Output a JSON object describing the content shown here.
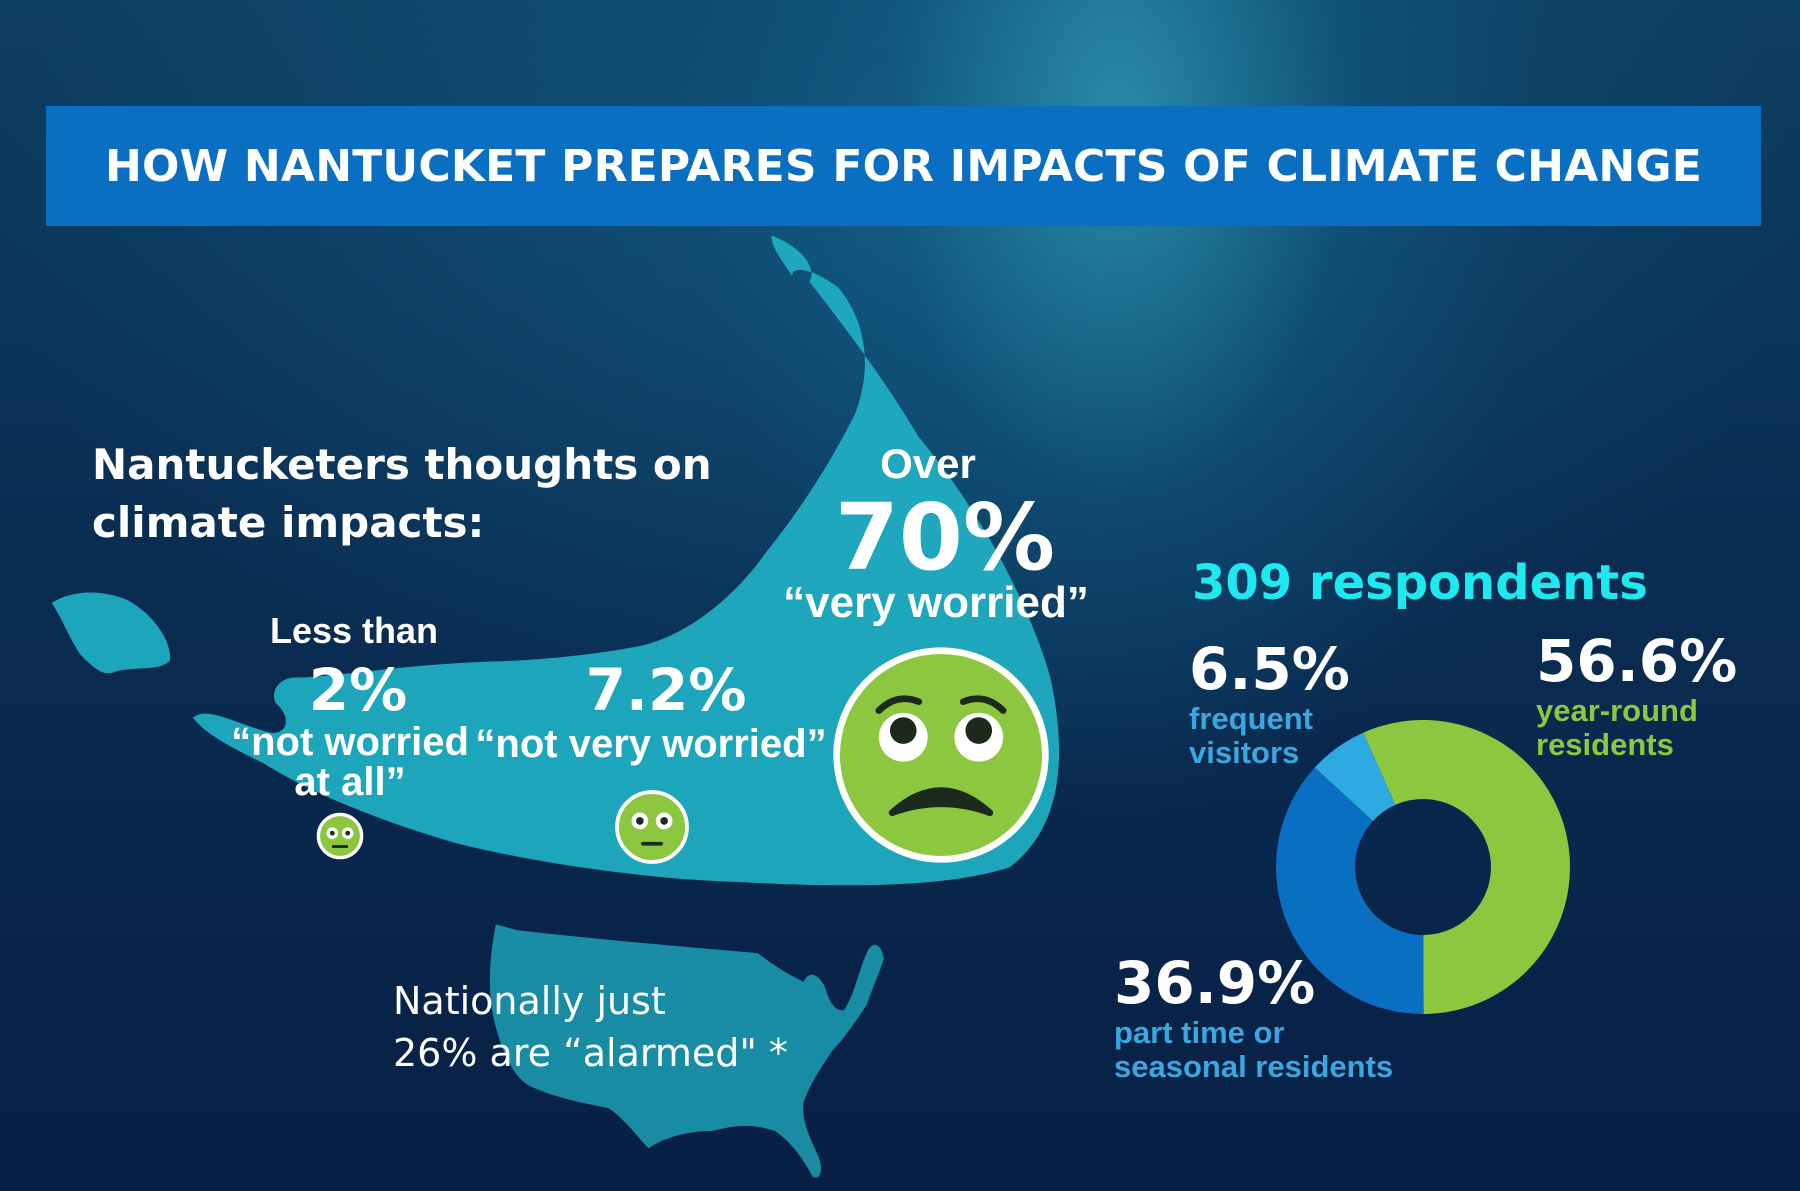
{
  "title": "HOW NANTUCKET PREPARES FOR IMPACTS OF CLIMATE CHANGE",
  "thoughts": {
    "heading_line1": "Nantucketers thoughts on",
    "heading_line2": "climate impacts:",
    "very_worried": {
      "prefix": "Over",
      "value": "70%",
      "label": "“very worried”",
      "icon": "worried-face-icon"
    },
    "not_very_worried": {
      "value": "7.2%",
      "label": "“not very worried”",
      "icon": "flushed-face-icon"
    },
    "not_worried_at_all": {
      "prefix": "Less than",
      "value": "2%",
      "label_line1": "“not worried",
      "label_line2": "at all”",
      "icon": "flushed-face-icon"
    }
  },
  "national": {
    "line1": "Nationally just",
    "line2": "26% are “alarmed\" *"
  },
  "colors": {
    "title_bar": "#0a6fc2",
    "island": "#1fb0c4",
    "green": "#8dc63f",
    "dark_blue": "#0a6fc2",
    "light_blue": "#2ea9e1",
    "cyan": "#1ee8f0"
  },
  "chart_data": {
    "type": "pie",
    "donut": true,
    "title": "309 respondents",
    "categories": [
      "year-round residents",
      "part time or seasonal residents",
      "frequent visitors"
    ],
    "values": [
      56.6,
      36.9,
      6.5
    ],
    "labels": [
      {
        "value": "56.6%",
        "line1": "year-round",
        "line2": "residents"
      },
      {
        "value": "36.9%",
        "line1": "part time or",
        "line2": "seasonal residents"
      },
      {
        "value": "6.5%",
        "line1": "frequent",
        "line2": "visitors"
      }
    ],
    "colors": [
      "#8dc63f",
      "#0a6fc2",
      "#2ea9e1"
    ]
  }
}
